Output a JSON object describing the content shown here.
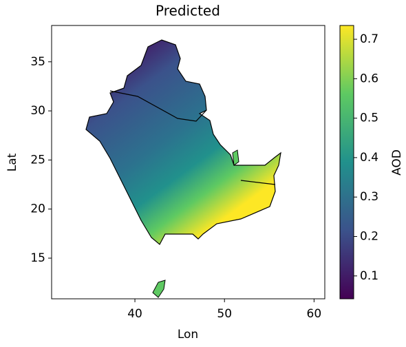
{
  "chart_data": {
    "type": "map",
    "title": "Predicted",
    "xlabel": "Lon",
    "ylabel": "Lat",
    "xlim": [
      30.7,
      61.2
    ],
    "xticks": [
      40,
      50,
      60
    ],
    "ylim": [
      10.86,
      38.7
    ],
    "yticks": [
      15,
      20,
      25,
      30,
      35
    ],
    "colorbar": {
      "label": "AOD",
      "lim": [
        0.042,
        0.735
      ],
      "ticks": [
        0.1,
        0.2,
        0.3,
        0.4,
        0.5,
        0.6,
        0.7
      ]
    }
  }
}
